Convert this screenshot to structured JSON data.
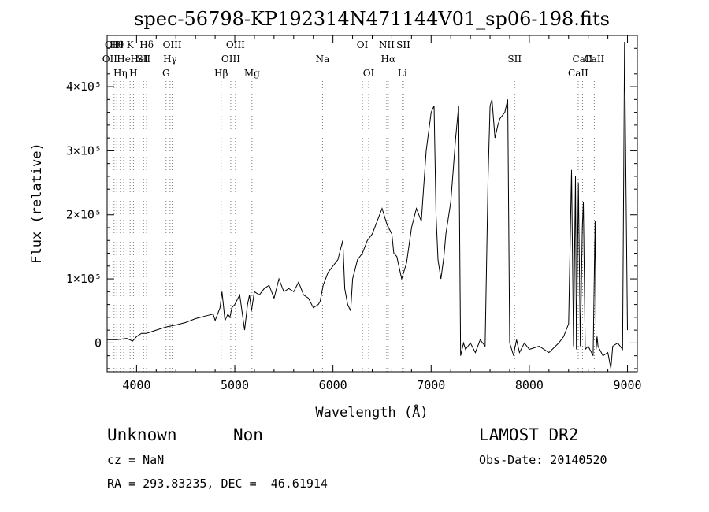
{
  "chart_data": {
    "type": "line",
    "title": "spec-56798-KP192314N471144V01_sp06-198.fits",
    "xlabel": "Wavelength (Å)",
    "ylabel": "Flux (relative)",
    "xlim": [
      3700,
      9100
    ],
    "ylim": [
      -45000,
      480000
    ],
    "x_ticks": [
      4000,
      5000,
      6000,
      7000,
      8000,
      9000
    ],
    "y_ticks": [
      {
        "value": 0,
        "label": "0"
      },
      {
        "value": 100000,
        "label": "1×10⁵"
      },
      {
        "value": 200000,
        "label": "2×10⁵"
      },
      {
        "value": 300000,
        "label": "3×10⁵"
      },
      {
        "value": 400000,
        "label": "4×10⁵"
      }
    ],
    "series": [
      {
        "x": [
          3700,
          3800,
          3900,
          3960,
          4000,
          4050,
          4100,
          4200,
          4300,
          4400,
          4500,
          4600,
          4700,
          4780,
          4800,
          4850,
          4870,
          4900,
          4930,
          4950,
          4970,
          5000,
          5050,
          5100,
          5130,
          5150,
          5170,
          5200,
          5250,
          5300,
          5350,
          5400,
          5450,
          5500,
          5550,
          5600,
          5650,
          5700,
          5750,
          5800,
          5850,
          5870,
          5900,
          5950,
          6000,
          6050,
          6100,
          6120,
          6150,
          6180,
          6200,
          6250,
          6300,
          6350,
          6400,
          6450,
          6500,
          6550,
          6600,
          6620,
          6650,
          6700,
          6720,
          6750,
          6800,
          6850,
          6900,
          6950,
          7000,
          7030,
          7050,
          7070,
          7100,
          7130,
          7150,
          7200,
          7250,
          7280,
          7300,
          7330,
          7350,
          7400,
          7450,
          7500,
          7550,
          7580,
          7600,
          7620,
          7650,
          7680,
          7700,
          7750,
          7780,
          7800,
          7820,
          7840,
          7850,
          7870,
          7900,
          7950,
          8000,
          8100,
          8200,
          8300,
          8350,
          8400,
          8430,
          8450,
          8470,
          8480,
          8500,
          8520,
          8540,
          8550,
          8570,
          8600,
          8650,
          8670,
          8680,
          8690,
          8700,
          8750,
          8800,
          8830,
          8850,
          8900,
          8950,
          8970,
          9000
        ],
        "y": [
          5000,
          5000,
          7000,
          3000,
          10000,
          15000,
          15000,
          20000,
          25000,
          28000,
          32000,
          38000,
          42000,
          45000,
          35000,
          55000,
          80000,
          35000,
          45000,
          40000,
          55000,
          60000,
          75000,
          20000,
          60000,
          75000,
          50000,
          80000,
          75000,
          85000,
          90000,
          70000,
          100000,
          80000,
          85000,
          80000,
          95000,
          75000,
          70000,
          55000,
          60000,
          65000,
          90000,
          110000,
          120000,
          130000,
          160000,
          85000,
          60000,
          50000,
          100000,
          130000,
          140000,
          160000,
          170000,
          190000,
          210000,
          185000,
          170000,
          140000,
          135000,
          100000,
          110000,
          125000,
          180000,
          210000,
          190000,
          300000,
          360000,
          370000,
          200000,
          130000,
          100000,
          135000,
          170000,
          220000,
          320000,
          370000,
          -20000,
          0,
          -10000,
          0,
          -15000,
          5000,
          -5000,
          260000,
          370000,
          380000,
          320000,
          340000,
          350000,
          360000,
          380000,
          0,
          -10000,
          -20000,
          -10000,
          5000,
          -15000,
          0,
          -10000,
          -5000,
          -15000,
          0,
          10000,
          30000,
          270000,
          -5000,
          260000,
          -10000,
          250000,
          -5000,
          180000,
          220000,
          -10000,
          -5000,
          -20000,
          190000,
          -10000,
          10000,
          -5000,
          -20000,
          -15000,
          -40000,
          -5000,
          0,
          -10000,
          470000,
          20000
        ]
      }
    ],
    "line_markers": [
      {
        "x": 3727,
        "label": "OII",
        "row": 1
      },
      {
        "x": 3771,
        "label": "OIII",
        "row": 0
      },
      {
        "x": 3798,
        "label": "Hθ",
        "row": 0
      },
      {
        "x": 3835,
        "label": "Hη",
        "row": 2
      },
      {
        "x": 3869,
        "label": "He",
        "row": 1
      },
      {
        "x": 3934,
        "label": "K",
        "row": 0
      },
      {
        "x": 3968,
        "label": "H",
        "row": 2
      },
      {
        "x": 4026,
        "label": "HeI",
        "row": 1
      },
      {
        "x": 4071,
        "label": "SII",
        "row": 1
      },
      {
        "x": 4102,
        "label": "Hδ",
        "row": 0
      },
      {
        "x": 4300,
        "label": "G",
        "row": 2
      },
      {
        "x": 4341,
        "label": "Hγ",
        "row": 1
      },
      {
        "x": 4363,
        "label": "OIII",
        "row": 0
      },
      {
        "x": 4861,
        "label": "Hβ",
        "row": 2
      },
      {
        "x": 4959,
        "label": "OIII",
        "row": 1
      },
      {
        "x": 5007,
        "label": "OIII",
        "row": 0
      },
      {
        "x": 5175,
        "label": "Mg",
        "row": 2
      },
      {
        "x": 5894,
        "label": "Na",
        "row": 1
      },
      {
        "x": 6300,
        "label": "OI",
        "row": 0
      },
      {
        "x": 6364,
        "label": "OI",
        "row": 2
      },
      {
        "x": 6548,
        "label": "NII",
        "row": 0
      },
      {
        "x": 6563,
        "label": "Hα",
        "row": 1
      },
      {
        "x": 6707,
        "label": "Li",
        "row": 2
      },
      {
        "x": 6717,
        "label": "SII",
        "row": 0
      },
      {
        "x": 7850,
        "label": "SII",
        "row": 1
      },
      {
        "x": 8498,
        "label": "CaII",
        "row": 2
      },
      {
        "x": 8542,
        "label": "CaII",
        "row": 1
      },
      {
        "x": 8662,
        "label": "CaII",
        "row": 1
      }
    ]
  },
  "info": {
    "class": "Unknown",
    "subclass": "Non",
    "survey": "LAMOST DR2",
    "cz": "cz = NaN",
    "obs_date": "Obs-Date: 20140520",
    "coords": "RA = 293.83235, DEC =  46.61914"
  }
}
